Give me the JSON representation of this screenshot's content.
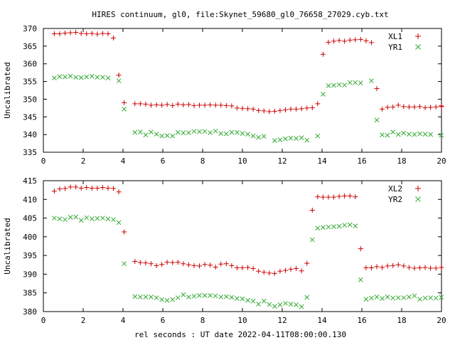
{
  "title": "HIRES continuum, gl0, file:Skynet_59680_gl0_76658_27029.cyb.txt",
  "xlabel": "rel seconds : UT date 2022-04-11T08:00:00.130",
  "colors": {
    "red": "#cc0000",
    "green": "#33aa33",
    "axis": "#000000",
    "background": "#ffffff"
  },
  "chart_data": [
    {
      "type": "scatter",
      "ylabel": "Uncalibrated",
      "xlim": [
        0,
        20
      ],
      "ylim": [
        335,
        370
      ],
      "xticks": [
        "0",
        "2",
        "4",
        "6",
        "8",
        "10",
        "12",
        "14",
        "16",
        "18",
        "20"
      ],
      "yticks": [
        "335",
        "340",
        "345",
        "350",
        "355",
        "360",
        "365",
        "370"
      ],
      "grid": false,
      "legend_position": "top-right",
      "x": [
        0.55,
        0.82,
        1.09,
        1.36,
        1.63,
        1.9,
        2.17,
        2.44,
        2.71,
        2.98,
        3.25,
        3.52,
        3.79,
        4.06,
        4.33,
        4.6,
        4.87,
        5.14,
        5.41,
        5.68,
        5.95,
        6.22,
        6.49,
        6.76,
        7.03,
        7.3,
        7.57,
        7.84,
        8.11,
        8.38,
        8.65,
        8.92,
        9.19,
        9.46,
        9.73,
        10.0,
        10.27,
        10.54,
        10.81,
        11.08,
        11.35,
        11.62,
        11.89,
        12.16,
        12.43,
        12.7,
        12.97,
        13.24,
        13.51,
        13.78,
        14.05,
        14.32,
        14.59,
        14.86,
        15.13,
        15.4,
        15.67,
        15.94,
        16.21,
        16.48,
        16.75,
        17.02,
        17.29,
        17.56,
        17.83,
        18.1,
        18.37,
        18.64,
        18.91,
        19.18,
        19.45,
        19.72,
        19.99
      ],
      "series": [
        {
          "name": "XL1",
          "marker": "+",
          "color": "#cc0000",
          "values": [
            368.5,
            368.5,
            368.7,
            368.8,
            368.9,
            368.6,
            368.5,
            368.6,
            368.4,
            368.6,
            368.5,
            367.3,
            356.8,
            349.0,
            348.7,
            348.7,
            348.6,
            348.3,
            348.4,
            348.3,
            348.5,
            348.2,
            348.6,
            348.4,
            348.5,
            348.2,
            348.3,
            348.3,
            348.4,
            348.3,
            348.3,
            348.2,
            348.1,
            347.5,
            347.4,
            347.3,
            347.2,
            346.8,
            346.7,
            346.5,
            346.6,
            346.8,
            347.0,
            347.2,
            347.2,
            347.3,
            347.5,
            347.6,
            348.7,
            362.7,
            366.1,
            366.4,
            366.6,
            366.4,
            366.7,
            366.8,
            366.9,
            366.5,
            366.0,
            353.0,
            347.2,
            347.7,
            347.8,
            348.3,
            347.9,
            347.8,
            347.8,
            347.9,
            347.6,
            347.7,
            347.8,
            348.1,
            347.9
          ],
          "points_x_override": [
            0.55,
            0.82,
            1.09,
            1.36,
            1.63,
            1.9,
            2.17,
            2.44,
            2.71,
            2.98,
            3.25,
            3.52,
            3.79,
            4.06,
            4.6,
            4.87,
            5.14,
            5.41,
            5.68,
            5.95,
            6.22,
            6.49,
            6.76,
            7.03,
            7.3,
            7.57,
            7.84,
            8.11,
            8.38,
            8.65,
            8.92,
            9.19,
            9.46,
            9.73,
            10.0,
            10.27,
            10.54,
            10.81,
            11.08,
            11.35,
            11.62,
            11.89,
            12.16,
            12.43,
            12.7,
            12.97,
            13.24,
            13.51,
            13.78,
            14.05,
            14.32,
            14.59,
            14.86,
            15.13,
            15.4,
            15.67,
            15.94,
            16.21,
            16.48,
            16.75,
            17.02,
            17.29,
            17.56,
            17.83,
            18.1,
            18.37,
            18.64,
            18.91,
            19.18,
            19.45,
            19.72,
            19.99,
            20.0
          ]
        },
        {
          "name": "YR1",
          "marker": "x",
          "color": "#33aa33",
          "values": [
            356.0,
            356.4,
            356.3,
            356.5,
            356.2,
            356.1,
            356.3,
            356.5,
            356.2,
            356.2,
            356.0,
            355.2,
            347.2,
            340.6,
            340.7,
            339.9,
            340.7,
            340.1,
            339.6,
            339.7,
            339.6,
            340.6,
            340.5,
            340.5,
            340.9,
            340.8,
            340.9,
            340.5,
            341.0,
            340.3,
            340.2,
            340.6,
            340.6,
            340.3,
            340.1,
            339.6,
            339.2,
            339.5,
            338.3,
            338.5,
            338.8,
            339.0,
            338.9,
            339.1,
            338.4,
            339.6,
            351.4,
            353.8,
            353.9,
            354.1,
            354.0,
            354.7,
            354.7,
            354.6,
            355.2,
            344.1,
            339.9,
            339.8,
            340.7,
            340.0,
            340.4,
            340.1,
            340.0,
            340.2,
            340.1,
            340.0,
            339.8
          ],
          "points_x_override": [
            0.55,
            0.82,
            1.09,
            1.36,
            1.63,
            1.9,
            2.17,
            2.44,
            2.71,
            2.98,
            3.25,
            3.79,
            4.06,
            4.6,
            4.87,
            5.14,
            5.41,
            5.68,
            5.95,
            6.22,
            6.49,
            6.76,
            7.03,
            7.3,
            7.57,
            7.84,
            8.11,
            8.38,
            8.65,
            8.92,
            9.19,
            9.46,
            9.73,
            10.0,
            10.27,
            10.54,
            10.81,
            11.08,
            11.62,
            11.89,
            12.16,
            12.43,
            12.7,
            12.97,
            13.24,
            13.78,
            14.05,
            14.32,
            14.59,
            14.86,
            15.13,
            15.4,
            15.67,
            15.94,
            16.48,
            16.75,
            17.02,
            17.29,
            17.56,
            17.83,
            18.1,
            18.37,
            18.64,
            18.91,
            19.18,
            19.45,
            19.99
          ]
        }
      ]
    },
    {
      "type": "scatter",
      "ylabel": "Uncalibrated",
      "xlim": [
        0,
        20
      ],
      "ylim": [
        380,
        415
      ],
      "xticks": [
        "0",
        "2",
        "4",
        "6",
        "8",
        "10",
        "12",
        "14",
        "16",
        "18",
        "20"
      ],
      "yticks": [
        "380",
        "385",
        "390",
        "395",
        "400",
        "405",
        "410",
        "415"
      ],
      "grid": false,
      "legend_position": "top-right",
      "series": [
        {
          "name": "XL2",
          "marker": "+",
          "color": "#cc0000",
          "x": [
            0.55,
            0.82,
            1.09,
            1.36,
            1.63,
            1.9,
            2.17,
            2.44,
            2.71,
            2.98,
            3.25,
            3.52,
            3.79,
            4.06,
            4.6,
            4.87,
            5.14,
            5.41,
            5.68,
            5.95,
            6.22,
            6.49,
            6.76,
            7.03,
            7.3,
            7.57,
            7.84,
            8.11,
            8.38,
            8.65,
            8.92,
            9.19,
            9.46,
            9.73,
            10.0,
            10.27,
            10.54,
            10.81,
            11.08,
            11.35,
            11.62,
            11.89,
            12.16,
            12.43,
            12.7,
            12.97,
            13.24,
            13.51,
            13.78,
            14.05,
            14.32,
            14.59,
            14.86,
            15.13,
            15.4,
            15.67,
            15.94,
            16.21,
            16.48,
            16.75,
            17.02,
            17.29,
            17.56,
            17.83,
            18.1,
            18.37,
            18.64,
            18.91,
            19.18,
            19.45,
            19.72,
            19.99
          ],
          "values": [
            412.2,
            412.8,
            412.9,
            413.3,
            413.3,
            413.0,
            413.2,
            413.0,
            413.0,
            413.2,
            413.0,
            412.9,
            412.0,
            401.3,
            393.4,
            393.1,
            393.0,
            392.8,
            392.3,
            392.6,
            393.2,
            393.1,
            393.2,
            392.8,
            392.5,
            392.3,
            392.2,
            392.6,
            392.4,
            391.9,
            392.7,
            392.8,
            392.3,
            391.7,
            391.7,
            391.8,
            391.5,
            390.8,
            390.5,
            390.3,
            390.2,
            390.8,
            391.0,
            391.3,
            391.5,
            390.9,
            392.9,
            407.1,
            410.7,
            410.6,
            410.6,
            410.6,
            410.8,
            410.9,
            410.9,
            410.7,
            396.8,
            391.7,
            391.7,
            392.0,
            391.8,
            392.2,
            392.3,
            392.5,
            392.2,
            391.8,
            391.6,
            391.7,
            391.8,
            391.6,
            391.6,
            391.8
          ]
        },
        {
          "name": "YR2",
          "marker": "x",
          "color": "#33aa33",
          "x": [
            0.55,
            0.82,
            1.09,
            1.36,
            1.63,
            1.9,
            2.17,
            2.44,
            2.71,
            2.98,
            3.25,
            3.52,
            3.79,
            4.06,
            4.6,
            4.87,
            5.14,
            5.41,
            5.68,
            5.95,
            6.22,
            6.49,
            6.76,
            7.03,
            7.3,
            7.57,
            7.84,
            8.11,
            8.38,
            8.65,
            8.92,
            9.19,
            9.46,
            9.73,
            10.0,
            10.27,
            10.54,
            10.81,
            11.08,
            11.35,
            11.62,
            11.89,
            12.16,
            12.43,
            12.7,
            12.97,
            13.24,
            13.51,
            13.78,
            14.05,
            14.32,
            14.59,
            14.86,
            15.13,
            15.4,
            15.67,
            15.94,
            16.21,
            16.48,
            16.75,
            17.02,
            17.29,
            17.56,
            17.83,
            18.1,
            18.37,
            18.64,
            18.91,
            19.18,
            19.45,
            19.72,
            19.99
          ],
          "values": [
            405.0,
            404.8,
            404.6,
            405.2,
            405.3,
            404.4,
            405.1,
            404.8,
            404.9,
            405.0,
            404.8,
            404.6,
            403.8,
            392.8,
            384.0,
            383.9,
            383.9,
            383.9,
            383.7,
            383.2,
            383.0,
            383.2,
            383.7,
            384.5,
            383.9,
            384.1,
            384.3,
            384.3,
            384.3,
            384.2,
            383.9,
            384.0,
            383.8,
            383.5,
            383.4,
            383.0,
            382.8,
            382.0,
            382.8,
            381.9,
            381.4,
            381.8,
            382.2,
            382.0,
            381.8,
            381.3,
            383.8,
            399.2,
            402.3,
            402.5,
            402.6,
            402.7,
            402.8,
            403.1,
            403.2,
            402.9,
            388.5,
            383.3,
            383.6,
            383.9,
            383.5,
            383.9,
            383.6,
            383.7,
            383.7,
            383.9,
            384.2,
            383.3,
            383.6,
            383.7,
            383.6,
            383.8
          ]
        }
      ]
    }
  ]
}
